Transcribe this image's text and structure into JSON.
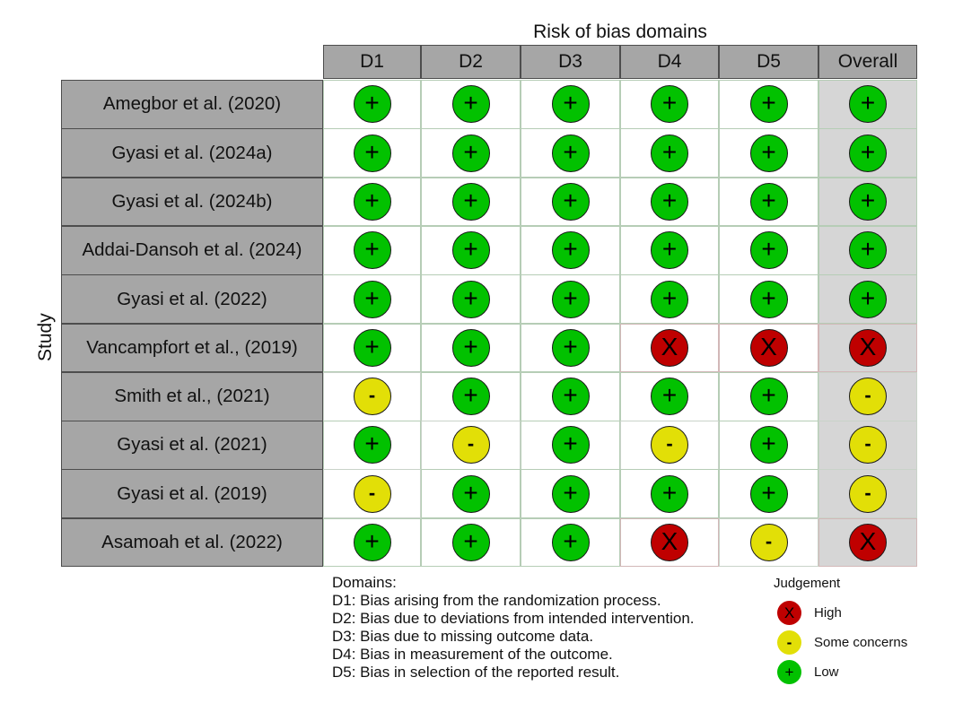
{
  "chart_data": {
    "type": "table",
    "title": "Risk of bias domains",
    "ylabel": "Study",
    "columns": [
      "D1",
      "D2",
      "D3",
      "D4",
      "D5",
      "Overall"
    ],
    "rows": [
      {
        "study": "Amegbor et al. (2020)",
        "judgements": [
          "Low",
          "Low",
          "Low",
          "Low",
          "Low",
          "Low"
        ]
      },
      {
        "study": "Gyasi et al. (2024a)",
        "judgements": [
          "Low",
          "Low",
          "Low",
          "Low",
          "Low",
          "Low"
        ]
      },
      {
        "study": "Gyasi et al. (2024b)",
        "judgements": [
          "Low",
          "Low",
          "Low",
          "Low",
          "Low",
          "Low"
        ]
      },
      {
        "study": "Addai-Dansoh et al. (2024)",
        "judgements": [
          "Low",
          "Low",
          "Low",
          "Low",
          "Low",
          "Low"
        ]
      },
      {
        "study": "Gyasi et al. (2022)",
        "judgements": [
          "Low",
          "Low",
          "Low",
          "Low",
          "Low",
          "Low"
        ]
      },
      {
        "study": "Vancampfort et al., (2019)",
        "judgements": [
          "Low",
          "Low",
          "Low",
          "High",
          "High",
          "High"
        ]
      },
      {
        "study": "Smith et al., (2021)",
        "judgements": [
          "Some concerns",
          "Low",
          "Low",
          "Low",
          "Low",
          "Some concerns"
        ]
      },
      {
        "study": "Gyasi et al. (2021)",
        "judgements": [
          "Low",
          "Some concerns",
          "Low",
          "Some concerns",
          "Low",
          "Some concerns"
        ]
      },
      {
        "study": "Gyasi et al. (2019)",
        "judgements": [
          "Some concerns",
          "Low",
          "Low",
          "Low",
          "Low",
          "Some concerns"
        ]
      },
      {
        "study": "Asamoah et al. (2022)",
        "judgements": [
          "Low",
          "Low",
          "Low",
          "High",
          "Some concerns",
          "High"
        ]
      }
    ],
    "legend": {
      "domains_title": "Domains:",
      "domains": [
        "D1: Bias arising from the randomization process.",
        "D2: Bias due to deviations from intended intervention.",
        "D3: Bias due to missing outcome data.",
        "D4: Bias in measurement of the outcome.",
        "D5: Bias in selection of the reported result."
      ],
      "judgement_title": "Judgement",
      "judgements": [
        {
          "label": "High",
          "symbol": "X",
          "color": "#bf0000"
        },
        {
          "label": "Some concerns",
          "symbol": "-",
          "color": "#e2df07"
        },
        {
          "label": "Low",
          "symbol": "+",
          "color": "#02c100"
        }
      ]
    }
  },
  "colors": {
    "low": "#02c100",
    "some": "#e2df07",
    "high": "#bf0000",
    "header_bg": "#a6a6a6",
    "overall_bg": "#d6d6d6"
  }
}
